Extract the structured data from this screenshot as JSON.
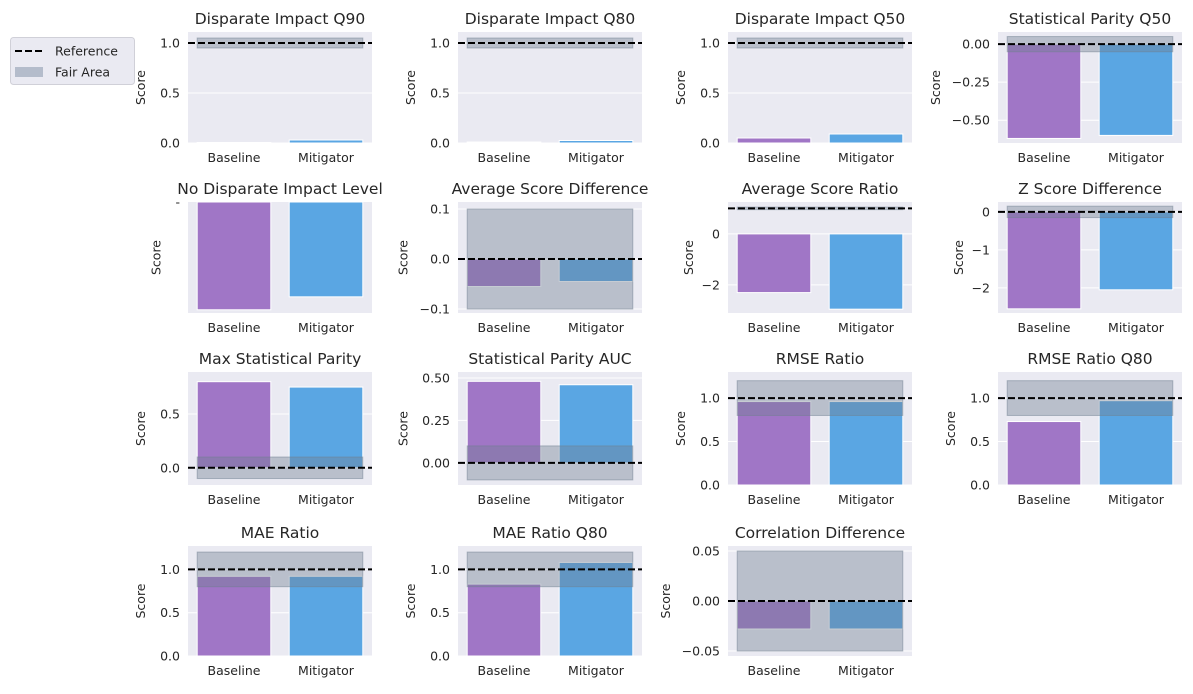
{
  "legend": {
    "placement": "top-left",
    "entries": [
      {
        "label": "Reference",
        "style": "dashed-line",
        "color": "#000000"
      },
      {
        "label": "Fair Area",
        "style": "patch",
        "color": "#b4bccb"
      }
    ]
  },
  "colors": {
    "background": "#eaeaf2",
    "baseline": "#a076c6",
    "mitigator": "#5aa6e3",
    "fair_area": "#708090",
    "reference": "#000000"
  },
  "chart_data": [
    {
      "type": "bar",
      "title": "Disparate Impact Q90",
      "ylabel": "Score",
      "categories": [
        "Baseline",
        "Mitigator"
      ],
      "values": [
        0.005,
        0.03
      ],
      "reference": 1.0,
      "fair_area": [
        0.95,
        1.05
      ],
      "ylim": [
        0,
        1.11
      ],
      "yticks": [
        0,
        0.5,
        1.0
      ],
      "ytick_labels": [
        "0.0",
        "0.5",
        "1.0"
      ],
      "grid": true
    },
    {
      "type": "bar",
      "title": "Disparate Impact Q80",
      "ylabel": "Score",
      "categories": [
        "Baseline",
        "Mitigator"
      ],
      "values": [
        0.01,
        0.025
      ],
      "reference": 1.0,
      "fair_area": [
        0.95,
        1.05
      ],
      "ylim": [
        0,
        1.11
      ],
      "yticks": [
        0,
        0.5,
        1.0
      ],
      "ytick_labels": [
        "0.0",
        "0.5",
        "1.0"
      ],
      "grid": true
    },
    {
      "type": "bar",
      "title": "Disparate Impact Q50",
      "ylabel": "Score",
      "categories": [
        "Baseline",
        "Mitigator"
      ],
      "values": [
        0.05,
        0.09
      ],
      "reference": 1.0,
      "fair_area": [
        0.95,
        1.05
      ],
      "ylim": [
        0,
        1.11
      ],
      "yticks": [
        0,
        0.5,
        1.0
      ],
      "ytick_labels": [
        "0.0",
        "0.5",
        "1.0"
      ],
      "grid": true
    },
    {
      "type": "bar",
      "title": "Statistical Parity Q50",
      "ylabel": "Score",
      "categories": [
        "Baseline",
        "Mitigator"
      ],
      "values": [
        -0.62,
        -0.6
      ],
      "reference": 0.0,
      "fair_area": [
        -0.05,
        0.05
      ],
      "ylim": [
        -0.65,
        0.08
      ],
      "yticks": [
        0,
        -0.25,
        -0.5
      ],
      "ytick_labels": [
        "0.00",
        "−0.25",
        "−0.50"
      ],
      "grid": true
    },
    {
      "type": "bar",
      "title": "No Disparate Impact Level",
      "ylabel": "Score",
      "categories": [
        "Baseline",
        "Mitigator"
      ],
      "values": [
        -1.0,
        -0.88
      ],
      "ylim": [
        -1.03,
        0
      ],
      "yticks": [
        0
      ],
      "ytick_labels": [
        "-"
      ],
      "grid": false
    },
    {
      "type": "bar",
      "title": "Average Score Difference",
      "ylabel": "Score",
      "categories": [
        "Baseline",
        "Mitigator"
      ],
      "values": [
        -0.055,
        -0.045
      ],
      "reference": 0.0,
      "fair_area": [
        -0.1,
        0.1
      ],
      "ylim": [
        -0.108,
        0.114
      ],
      "yticks": [
        0.1,
        0,
        -0.1
      ],
      "ytick_labels": [
        "0.1",
        "0.0",
        "−0.1"
      ],
      "grid": true
    },
    {
      "type": "bar",
      "title": "Average Score Ratio",
      "ylabel": "Score",
      "categories": [
        "Baseline",
        "Mitigator"
      ],
      "values": [
        -2.3,
        -2.95
      ],
      "reference": 1.0,
      "fair_area": [
        0.95,
        1.05
      ],
      "ylim": [
        -3.1,
        1.25
      ],
      "yticks": [
        0,
        -2
      ],
      "ytick_labels": [
        "0",
        "−2"
      ],
      "grid": true
    },
    {
      "type": "bar",
      "title": "Z Score Difference",
      "ylabel": "Score",
      "categories": [
        "Baseline",
        "Mitigator"
      ],
      "values": [
        -2.55,
        -2.05
      ],
      "reference": 0.0,
      "fair_area": [
        -0.15,
        0.15
      ],
      "ylim": [
        -2.66,
        0.26
      ],
      "yticks": [
        0,
        -1,
        -2
      ],
      "ytick_labels": [
        "0",
        "−1",
        "−2"
      ],
      "grid": true
    },
    {
      "type": "bar",
      "title": "Max Statistical Parity",
      "ylabel": "Score",
      "categories": [
        "Baseline",
        "Mitigator"
      ],
      "values": [
        0.8,
        0.75
      ],
      "reference": 0.0,
      "fair_area": [
        -0.1,
        0.1
      ],
      "ylim": [
        -0.16,
        0.89
      ],
      "yticks": [
        0.5,
        0
      ],
      "ytick_labels": [
        "0.5",
        "0.0"
      ],
      "grid": true
    },
    {
      "type": "bar",
      "title": "Statistical Parity AUC",
      "ylabel": "Score",
      "categories": [
        "Baseline",
        "Mitigator"
      ],
      "values": [
        0.48,
        0.46
      ],
      "reference": 0.0,
      "fair_area": [
        -0.1,
        0.1
      ],
      "ylim": [
        -0.13,
        0.535
      ],
      "yticks": [
        0.5,
        0.25,
        0
      ],
      "ytick_labels": [
        "0.50",
        "0.25",
        "0.00"
      ],
      "grid": true
    },
    {
      "type": "bar",
      "title": "RMSE Ratio",
      "ylabel": "Score",
      "categories": [
        "Baseline",
        "Mitigator"
      ],
      "values": [
        0.96,
        0.96
      ],
      "reference": 1.0,
      "fair_area": [
        0.8,
        1.2
      ],
      "ylim": [
        0,
        1.3
      ],
      "yticks": [
        1.0,
        0.5,
        0
      ],
      "ytick_labels": [
        "1.0",
        "0.5",
        "0.0"
      ],
      "grid": true
    },
    {
      "type": "bar",
      "title": "RMSE Ratio Q80",
      "ylabel": "Score",
      "categories": [
        "Baseline",
        "Mitigator"
      ],
      "values": [
        0.73,
        0.97
      ],
      "reference": 1.0,
      "fair_area": [
        0.8,
        1.2
      ],
      "ylim": [
        0,
        1.3
      ],
      "yticks": [
        1.0,
        0.5,
        0
      ],
      "ytick_labels": [
        "1.0",
        "0.5",
        "0.0"
      ],
      "grid": true
    },
    {
      "type": "bar",
      "title": "MAE Ratio",
      "ylabel": "Score",
      "categories": [
        "Baseline",
        "Mitigator"
      ],
      "values": [
        0.92,
        0.92
      ],
      "reference": 1.0,
      "fair_area": [
        0.8,
        1.2
      ],
      "ylim": [
        0,
        1.27
      ],
      "yticks": [
        1.0,
        0.5,
        0
      ],
      "ytick_labels": [
        "1.0",
        "0.5",
        "0.0"
      ],
      "grid": true
    },
    {
      "type": "bar",
      "title": "MAE Ratio Q80",
      "ylabel": "Score",
      "categories": [
        "Baseline",
        "Mitigator"
      ],
      "values": [
        0.83,
        1.08
      ],
      "reference": 1.0,
      "fair_area": [
        0.8,
        1.2
      ],
      "ylim": [
        0,
        1.27
      ],
      "yticks": [
        1.0,
        0.5,
        0
      ],
      "ytick_labels": [
        "1.0",
        "0.5",
        "0.0"
      ],
      "grid": true
    },
    {
      "type": "bar",
      "title": "Correlation Difference",
      "ylabel": "Score",
      "categories": [
        "Baseline",
        "Mitigator"
      ],
      "values": [
        -0.028,
        -0.028
      ],
      "reference": 0.0,
      "fair_area": [
        -0.05,
        0.05
      ],
      "ylim": [
        -0.055,
        0.055
      ],
      "yticks": [
        0.05,
        0,
        -0.05
      ],
      "ytick_labels": [
        "0.05",
        "0.00",
        "−0.05"
      ],
      "grid": true
    }
  ]
}
